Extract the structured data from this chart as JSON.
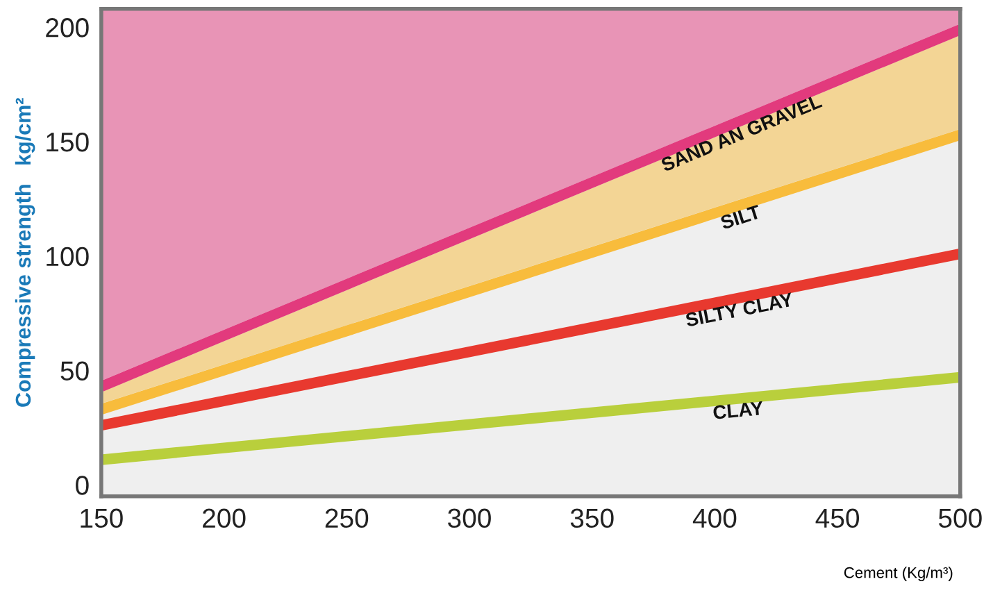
{
  "chart_data": {
    "type": "line",
    "ylabel": "Compressive strength   kg/cm²",
    "xlabel": "Cement (Kg/m³)",
    "x": [
      150,
      500
    ],
    "xlim": [
      150,
      500
    ],
    "xticks": [
      150,
      200,
      250,
      300,
      350,
      400,
      450,
      500
    ],
    "ylim": [
      -5,
      208
    ],
    "yticks": [
      0,
      50,
      100,
      150,
      200
    ],
    "grid": false,
    "legend": false,
    "series": [
      {
        "name": "SAND AN GRAVEL",
        "color": "#e23a7d",
        "values": [
          43,
          199
        ],
        "lower": [
          45.5,
          201.5
        ],
        "upper": [
          208,
          208
        ]
      },
      {
        "name": "SILT",
        "color": "#f8bc3c",
        "values": [
          33,
          153
        ],
        "lower": [
          35.5,
          155.5
        ],
        "upper": [
          40.5,
          196.5
        ]
      },
      {
        "name": "SILTY CLAY",
        "color": "#e8392f",
        "values": [
          26,
          101
        ]
      },
      {
        "name": "CLAY",
        "color": "#b9cf3c",
        "values": [
          11,
          47
        ]
      }
    ]
  }
}
